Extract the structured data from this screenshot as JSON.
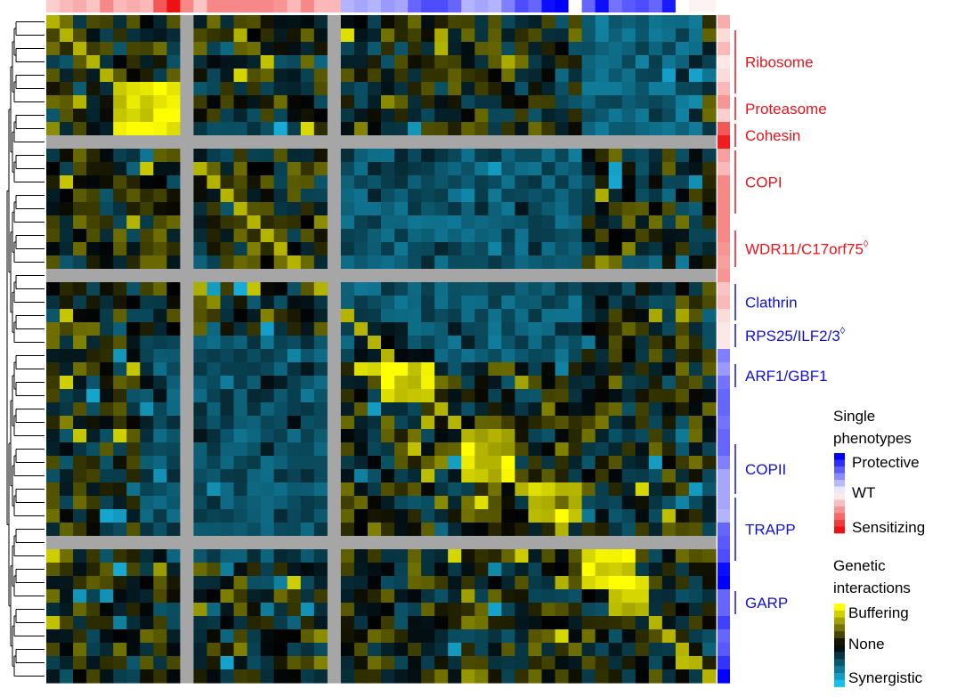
{
  "chart_data": {
    "type": "heatmap",
    "n": 50,
    "colors": {
      "buffering": "#ffff00",
      "none": "#000000",
      "synergistic": "#19c0ef",
      "missing": "#a6a6a6",
      "protective": "#0000ff",
      "wt": "#ffffff",
      "sensitizing": "#ee1111",
      "red_label": "#e8141c",
      "blue_label": "#1010dd"
    },
    "row_phenotype": [
      -0.35,
      -0.15,
      -0.3,
      -0.1,
      -0.15,
      -0.3,
      -0.45,
      -0.2,
      -0.7,
      -0.95,
      -0.4,
      -0.3,
      -0.5,
      -0.5,
      -0.5,
      -0.5,
      -0.5,
      -0.45,
      -0.4,
      -0.45,
      -0.25,
      -0.3,
      -0.15,
      -0.1,
      -0.1,
      0.5,
      0.4,
      0.55,
      0.6,
      0.6,
      0.55,
      0.6,
      0.6,
      0.5,
      0.35,
      0.35,
      0.35,
      0.3,
      0.6,
      0.65,
      0.7,
      0.95,
      1.0,
      0.6,
      0.6,
      0.75,
      0.6,
      0.65,
      0.8,
      1.0
    ],
    "col_phenotype": [
      -0.2,
      -0.3,
      -0.35,
      -0.25,
      -0.5,
      -0.3,
      -0.35,
      -0.3,
      -0.7,
      -1.0,
      -0.5,
      -0.25,
      -0.5,
      -0.5,
      -0.5,
      -0.5,
      -0.5,
      -0.45,
      -0.3,
      -0.5,
      -0.3,
      -0.3,
      0.3,
      0.35,
      0.3,
      0.4,
      0.35,
      0.6,
      0.7,
      0.7,
      0.6,
      0.3,
      0.35,
      0.3,
      0.5,
      0.7,
      0.6,
      0.95,
      1.0,
      0.0,
      0.6,
      0.95,
      0.55,
      0.65,
      0.7,
      0.6,
      0.9,
      0.0,
      -0.05,
      -0.05
    ],
    "missing_rows": [
      9,
      19,
      39
    ],
    "missing_cols": [
      10,
      21
    ],
    "blocks": [
      {
        "rows": [
          5,
          8
        ],
        "cols": [
          5,
          9
        ],
        "score": 0.85
      },
      {
        "rows": [
          23,
          26
        ],
        "cols": [
          23,
          26
        ],
        "score": 0.8
      },
      {
        "rows": [
          25,
          28
        ],
        "cols": [
          25,
          28
        ],
        "score": 0.85
      },
      {
        "rows": [
          31,
          34
        ],
        "cols": [
          31,
          34
        ],
        "score": 0.75
      },
      {
        "rows": [
          35,
          37
        ],
        "cols": [
          36,
          39
        ],
        "score": 0.75
      },
      {
        "rows": [
          40,
          42
        ],
        "cols": [
          40,
          43
        ],
        "score": 0.9
      },
      {
        "rows": [
          42,
          44
        ],
        "cols": [
          42,
          44
        ],
        "score": 0.8
      },
      {
        "rows": [
          9,
          25
        ],
        "cols": [
          22,
          39
        ],
        "score": -0.45
      },
      {
        "rows": [
          24,
          40
        ],
        "cols": [
          7,
          20
        ],
        "score": -0.4
      },
      {
        "rows": [
          0,
          8
        ],
        "cols": [
          40,
          48
        ],
        "score": -0.5
      }
    ]
  },
  "complexes": [
    {
      "label": "Ribosome",
      "rows": [
        1,
        5
      ],
      "color": "red",
      "sup": ""
    },
    {
      "label": "Proteasome",
      "rows": [
        6,
        7
      ],
      "color": "red",
      "sup": ""
    },
    {
      "label": "Cohesin",
      "rows": [
        8,
        9
      ],
      "color": "red",
      "sup": ""
    },
    {
      "label": "COPI",
      "rows": [
        10,
        14
      ],
      "color": "red",
      "sup": ""
    },
    {
      "label": "WDR11/C17orf75",
      "rows": [
        16,
        18
      ],
      "color": "red",
      "sup": "◊"
    },
    {
      "label": "Clathrin",
      "rows": [
        20,
        22
      ],
      "color": "blue",
      "sup": ""
    },
    {
      "label": "RPS25/ILF2/3",
      "rows": [
        23,
        24
      ],
      "color": "blue",
      "sup": "◊"
    },
    {
      "label": "ARF1/GBF1",
      "rows": [
        26,
        27
      ],
      "color": "blue",
      "sup": ""
    },
    {
      "label": "COPII",
      "rows": [
        32,
        35
      ],
      "color": "blue",
      "sup": ""
    },
    {
      "label": "TRAPP",
      "rows": [
        36,
        40
      ],
      "color": "blue",
      "sup": ""
    },
    {
      "label": "GARP",
      "rows": [
        43,
        44
      ],
      "color": "blue",
      "sup": ""
    }
  ],
  "legend": {
    "single_title": [
      "Single",
      "phenotypes"
    ],
    "protective": "Protective",
    "wt": "WT",
    "sensitizing": "Sensitizing",
    "genetic_title": [
      "Genetic",
      "interactions"
    ],
    "buffering": "Buffering",
    "none": "None",
    "synergistic": "Synergistic"
  }
}
